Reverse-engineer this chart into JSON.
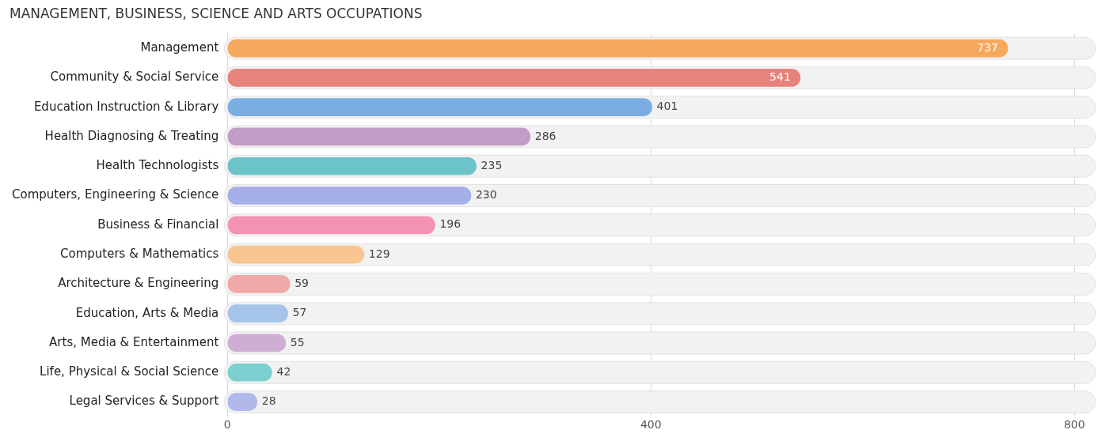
{
  "chart_data": {
    "type": "bar",
    "orientation": "horizontal",
    "title": "MANAGEMENT, BUSINESS, SCIENCE AND ARTS OCCUPATIONS",
    "categories": [
      "Management",
      "Community & Social Service",
      "Education Instruction & Library",
      "Health Diagnosing & Treating",
      "Health Technologists",
      "Computers, Engineering & Science",
      "Business & Financial",
      "Computers & Mathematics",
      "Architecture & Engineering",
      "Education, Arts & Media",
      "Arts, Media & Entertainment",
      "Life, Physical & Social Science",
      "Legal Services & Support"
    ],
    "values": [
      737,
      541,
      401,
      286,
      235,
      230,
      196,
      129,
      59,
      57,
      55,
      42,
      28
    ],
    "colors": [
      "#f6a85c",
      "#e8827c",
      "#7aaee3",
      "#c39cc7",
      "#6cc3c9",
      "#a5aee6",
      "#f492b4",
      "#f8c690",
      "#f0a8a8",
      "#a4c4ea",
      "#cfaed4",
      "#7ccfcf",
      "#b1b8ea"
    ],
    "xlim": [
      0,
      820
    ],
    "xticks": [
      0,
      400,
      800
    ],
    "grid": "x",
    "data_labels": true,
    "legend": false
  }
}
